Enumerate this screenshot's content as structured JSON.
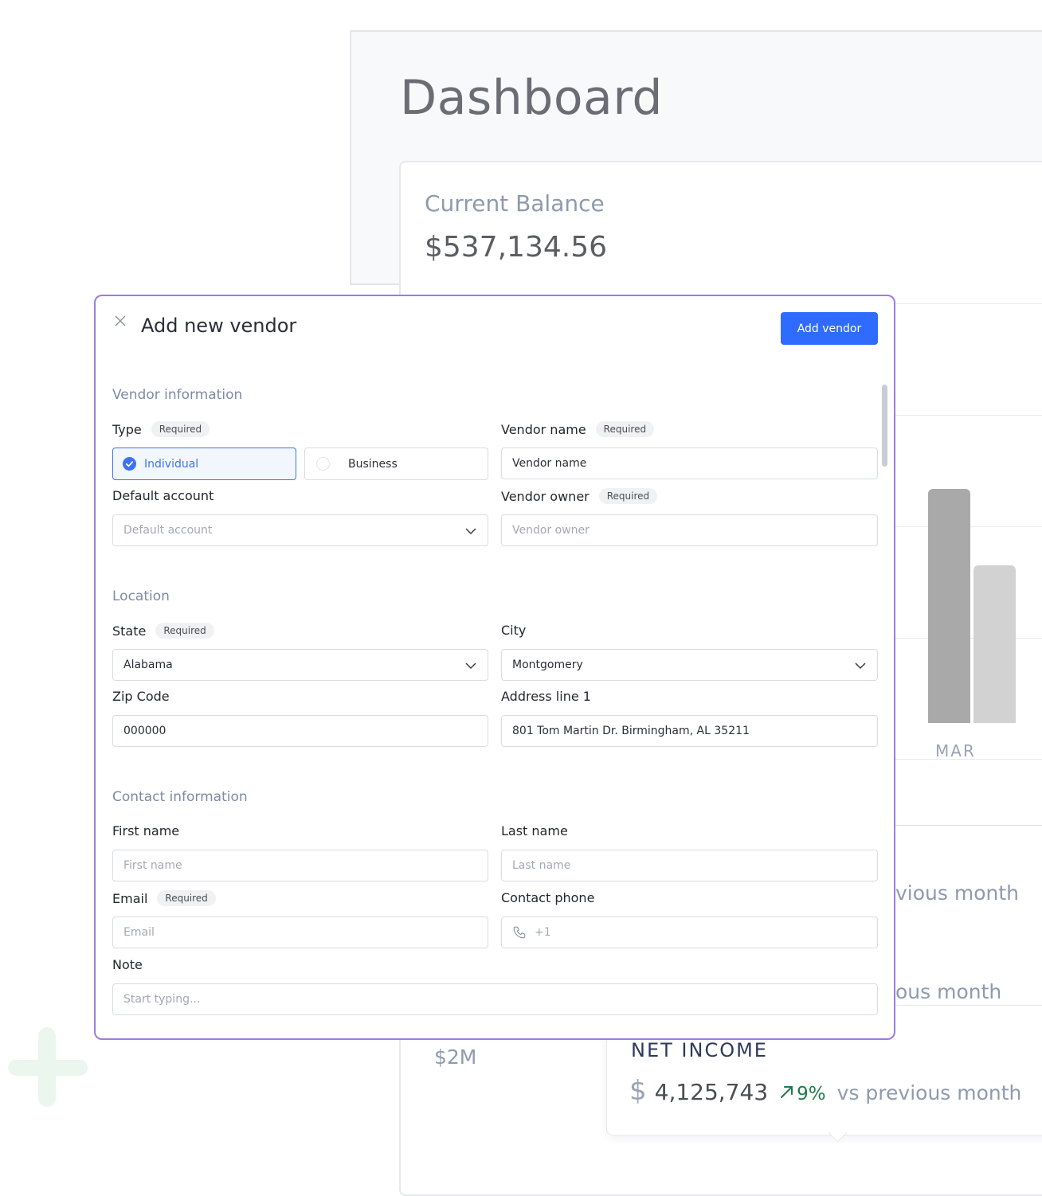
{
  "dashboard": {
    "title": "Dashboard",
    "balance_label": "Current Balance",
    "balance_value": "$537,134.56",
    "bar_month": "MAR",
    "vs_text_1": "vious month",
    "vs_text_2": "ous month",
    "y_tick_2m": "$2M",
    "net_income": {
      "label": "NET INCOME",
      "currency": "$",
      "value": "4,125,743",
      "change": "9%",
      "vs": "vs previous month"
    }
  },
  "modal": {
    "title": "Add new vendor",
    "add_button": "Add vendor",
    "required_badge": "Required",
    "sections": {
      "vendor_info": "Vendor information",
      "location": "Location",
      "contact": "Contact information"
    },
    "fields": {
      "type": {
        "label": "Type",
        "options": [
          "Individual",
          "Business"
        ],
        "selected": "Individual"
      },
      "vendor_name": {
        "label": "Vendor name",
        "value": "Vendor name"
      },
      "default_account": {
        "label": "Default account",
        "placeholder": "Default account"
      },
      "vendor_owner": {
        "label": "Vendor owner",
        "placeholder": "Vendor owner"
      },
      "state": {
        "label": "State",
        "value": "Alabama"
      },
      "city": {
        "label": "City",
        "value": "Montgomery"
      },
      "zip": {
        "label": "Zip Code",
        "value": "000000"
      },
      "address1": {
        "label": "Address line 1",
        "value": "801 Tom Martin Dr. Birmingham, AL 35211"
      },
      "first_name": {
        "label": "First name",
        "placeholder": "First name"
      },
      "last_name": {
        "label": "Last name",
        "placeholder": "Last name"
      },
      "email": {
        "label": "Email",
        "placeholder": "Email"
      },
      "phone": {
        "label": "Contact phone",
        "placeholder": "+1"
      },
      "note": {
        "label": "Note",
        "placeholder": "Start typing..."
      }
    }
  },
  "colors": {
    "accent": "#2f6bff",
    "modal_border": "#9b7be6",
    "positive": "#1f7a4d"
  }
}
